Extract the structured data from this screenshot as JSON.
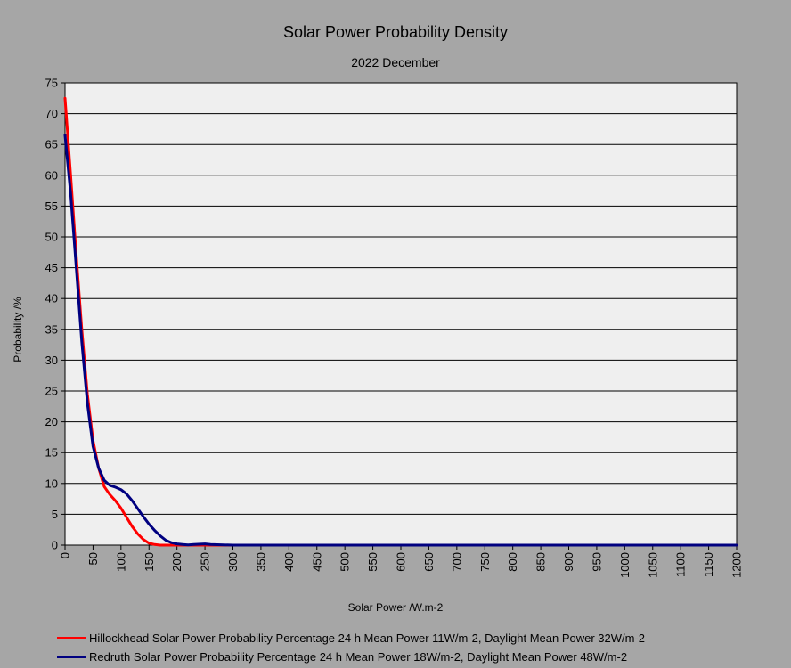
{
  "chart_data": {
    "type": "line",
    "title": "Solar Power Probability Density",
    "subtitle": "2022 December",
    "xlabel": "Solar Power /W.m-2",
    "ylabel": "Probability /%",
    "xlim": [
      0,
      1200
    ],
    "ylim": [
      0,
      75
    ],
    "x_ticks": [
      0,
      50,
      100,
      150,
      200,
      250,
      300,
      350,
      400,
      450,
      500,
      550,
      600,
      650,
      700,
      750,
      800,
      850,
      900,
      950,
      1000,
      1050,
      1100,
      1150,
      1200
    ],
    "y_ticks": [
      0,
      5,
      10,
      15,
      20,
      25,
      30,
      35,
      40,
      45,
      50,
      55,
      60,
      65,
      70,
      75
    ],
    "grid": "horizontal",
    "legend_position": "bottom",
    "series": [
      {
        "name": "Hillockhead Solar Power Probability Percentage  24 h Mean Power 11W/m-2, Daylight Mean Power 32W/m-2",
        "color": "#ff0000",
        "x": [
          0,
          10,
          20,
          30,
          40,
          50,
          60,
          70,
          80,
          90,
          100,
          110,
          120,
          130,
          140,
          150,
          160,
          170,
          200,
          250,
          300,
          400,
          500,
          600,
          700,
          800,
          900,
          1000,
          1100,
          1200
        ],
        "y": [
          72.5,
          60,
          47,
          35,
          24.5,
          17,
          12.5,
          9.5,
          8.2,
          7.2,
          6,
          4.5,
          3,
          1.8,
          0.9,
          0.3,
          0.1,
          0,
          0,
          0,
          0,
          0,
          0,
          0,
          0,
          0,
          0,
          0,
          0,
          0
        ]
      },
      {
        "name": "Redruth Solar Power Probability Percentage  24 h Mean Power 18W/m-2, Daylight Mean Power 48W/m-2",
        "color": "#000080",
        "x": [
          0,
          10,
          20,
          30,
          40,
          50,
          60,
          70,
          80,
          90,
          100,
          110,
          120,
          130,
          140,
          150,
          160,
          170,
          180,
          190,
          200,
          210,
          220,
          230,
          250,
          260,
          300,
          400,
          500,
          600,
          700,
          800,
          900,
          1000,
          1100,
          1200
        ],
        "y": [
          66.5,
          57,
          45,
          33,
          23,
          16,
          12.5,
          10.5,
          9.7,
          9.4,
          9,
          8.3,
          7.2,
          5.9,
          4.6,
          3.4,
          2.4,
          1.5,
          0.8,
          0.4,
          0.2,
          0.1,
          0.05,
          0.1,
          0.2,
          0.1,
          0,
          0,
          0,
          0,
          0,
          0,
          0,
          0,
          0,
          0
        ]
      }
    ]
  }
}
